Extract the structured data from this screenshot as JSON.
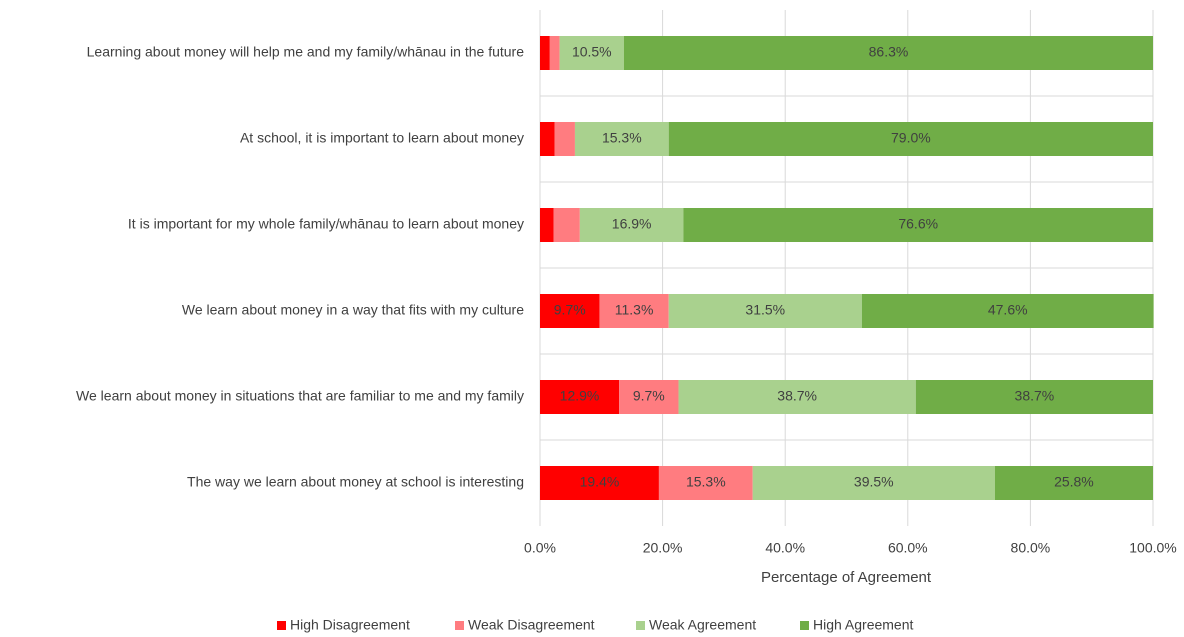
{
  "chart_data": {
    "type": "bar",
    "orientation": "horizontal",
    "stacked": true,
    "categories": [
      "Learning about money will help me and my family/whānau in the future",
      "At school, it is important to learn about money",
      "It is important for my whole family/whānau to learn about money",
      "We learn about money in a way that fits with my culture",
      "We learn about money in situations that are familiar to me and my family",
      "The way we learn about money at school is interesting"
    ],
    "series": [
      {
        "name": "High Disagreement",
        "color": "#ff0000",
        "values": [
          1.6,
          2.4,
          2.2,
          9.7,
          12.9,
          19.4
        ],
        "value_labels": [
          null,
          null,
          null,
          "9.7%",
          "12.9%",
          "19.4%"
        ]
      },
      {
        "name": "Weak Disagreement",
        "color": "#ff7c80",
        "values": [
          1.6,
          3.3,
          4.3,
          11.3,
          9.7,
          15.3
        ],
        "value_labels": [
          null,
          null,
          null,
          "11.3%",
          "9.7%",
          "15.3%"
        ]
      },
      {
        "name": "Weak Agreement",
        "color": "#a9d18e",
        "values": [
          10.5,
          15.3,
          16.9,
          31.5,
          38.7,
          39.5
        ],
        "value_labels": [
          "10.5%",
          "15.3%",
          "16.9%",
          "31.5%",
          "38.7%",
          "39.5%"
        ]
      },
      {
        "name": "High Agreement",
        "color": "#70ad47",
        "values": [
          86.3,
          79.0,
          76.6,
          47.6,
          38.7,
          25.8
        ],
        "value_labels": [
          "86.3%",
          "79.0%",
          "76.6%",
          "47.6%",
          "38.7%",
          "25.8%"
        ]
      }
    ],
    "x_label": "Percentage of Agreement",
    "xlim": [
      0,
      100
    ],
    "xticks": [
      {
        "value": 0,
        "label": "0.0%"
      },
      {
        "value": 20,
        "label": "20.0%"
      },
      {
        "value": 40,
        "label": "40.0%"
      },
      {
        "value": 60,
        "label": "60.0%"
      },
      {
        "value": 80,
        "label": "80.0%"
      },
      {
        "value": 100,
        "label": "100.0%"
      }
    ],
    "grid": true,
    "legend": "bottom"
  }
}
